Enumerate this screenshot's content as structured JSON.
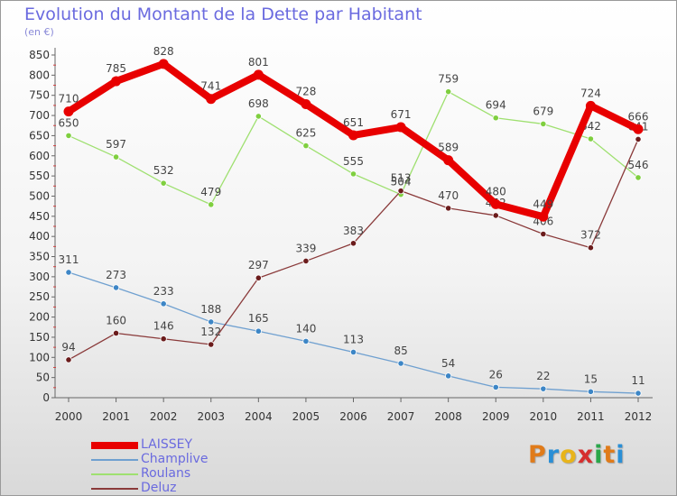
{
  "title": "Evolution du Montant de la Dette par Habitant",
  "subtitle": "(en €)",
  "logo": {
    "text": "Proxiti",
    "letter_colors": [
      "#e07b1a",
      "#2a8fd6",
      "#e8b41a",
      "#d62e2e",
      "#2aa64a",
      "#e07b1a",
      "#2a8fd6"
    ]
  },
  "chart_data": {
    "type": "line",
    "title": "Evolution du Montant de la Dette par Habitant",
    "subtitle": "(en €)",
    "xlabel": "",
    "ylabel": "",
    "x": [
      "2000",
      "2001",
      "2002",
      "2003",
      "2004",
      "2005",
      "2006",
      "2007",
      "2008",
      "2009",
      "2010",
      "2011",
      "2012"
    ],
    "ylim": [
      0,
      850
    ],
    "yticks": [
      0,
      50,
      100,
      150,
      200,
      250,
      300,
      350,
      400,
      450,
      500,
      550,
      600,
      650,
      700,
      750,
      800,
      850
    ],
    "grid": false,
    "legend_position": "bottom-left",
    "series": [
      {
        "name": "LAISSEY",
        "color": "#e80000",
        "marker_color": "#e80000",
        "emphasis": "thick",
        "values": [
          710,
          785,
          828,
          741,
          801,
          728,
          651,
          671,
          589,
          480,
          449,
          724,
          666
        ]
      },
      {
        "name": "Champlive",
        "color": "#6fa0d0",
        "marker_color": "#3d86c6",
        "emphasis": "normal",
        "values": [
          311,
          273,
          233,
          188,
          165,
          140,
          113,
          85,
          54,
          26,
          22,
          15,
          11
        ]
      },
      {
        "name": "Roulans",
        "color": "#9fe070",
        "marker_color": "#7fcf3f",
        "emphasis": "normal",
        "values": [
          650,
          597,
          532,
          479,
          698,
          625,
          555,
          504,
          759,
          694,
          679,
          642,
          546
        ]
      },
      {
        "name": "Deluz",
        "color": "#8a3a3a",
        "marker_color": "#6b1c1c",
        "emphasis": "normal",
        "values": [
          94,
          160,
          146,
          132,
          297,
          339,
          383,
          513,
          470,
          452,
          406,
          372,
          641
        ]
      }
    ]
  }
}
